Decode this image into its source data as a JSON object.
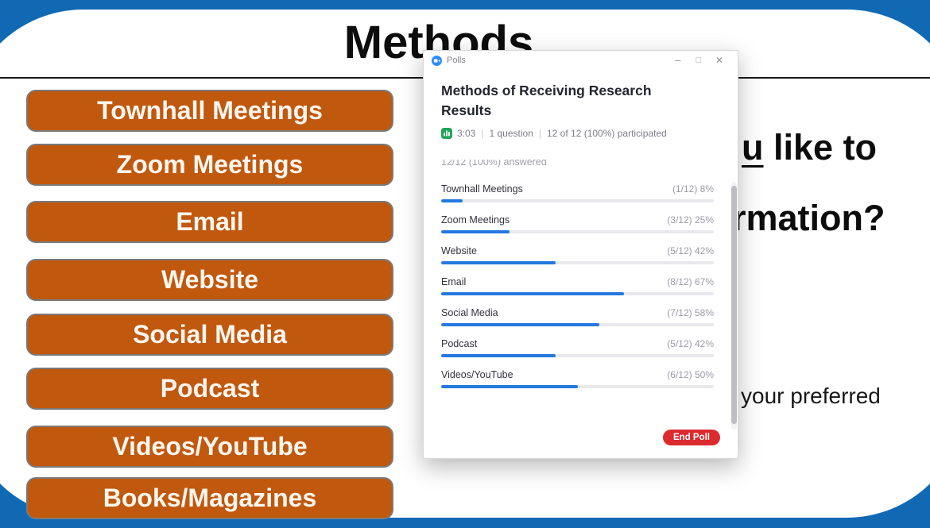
{
  "slide": {
    "title": "Methods",
    "question": {
      "line1_underlined": "u",
      "line1_rest": " like to",
      "line2": "rmation?",
      "line3": "your preferred"
    },
    "buttons": [
      "Townhall Meetings",
      "Zoom Meetings",
      "Email",
      "Website",
      "Social Media",
      "Podcast",
      "Videos/YouTube",
      "Books/Magazines"
    ],
    "colors": {
      "frame_blue": "#1169B4",
      "button_orange": "#C0580E"
    }
  },
  "poll": {
    "window_title": "Polls",
    "icons": {
      "app": "zoom-video-camera",
      "stats": "bar-chart",
      "minimize": "–",
      "maximize": "□",
      "close": "✕"
    },
    "question_title": "Methods of Receiving Research Results",
    "stats": {
      "time": "3:03",
      "separator": "|",
      "questions": "1 question",
      "participation": "12 of 12 (100%) participated"
    },
    "answered": "12/12 (100%) answered",
    "results": [
      {
        "label": "Townhall Meetings",
        "value": "(1/12) 8%",
        "pct": 8
      },
      {
        "label": "Zoom Meetings",
        "value": "(3/12) 25%",
        "pct": 25
      },
      {
        "label": "Website",
        "value": "(5/12) 42%",
        "pct": 42
      },
      {
        "label": "Email",
        "value": "(8/12) 67%",
        "pct": 67
      },
      {
        "label": "Social Media",
        "value": "(7/12) 58%",
        "pct": 58
      },
      {
        "label": "Podcast",
        "value": "(5/12) 42%",
        "pct": 42
      },
      {
        "label": "Videos/YouTube",
        "value": "(6/12) 50%",
        "pct": 50
      }
    ],
    "end_poll_label": "End Poll",
    "colors": {
      "progress_blue": "#2478DE",
      "end_poll_red": "#DC2B2F",
      "stats_green": "#23A45B",
      "zoom_blue": "#2D8CFF"
    }
  }
}
